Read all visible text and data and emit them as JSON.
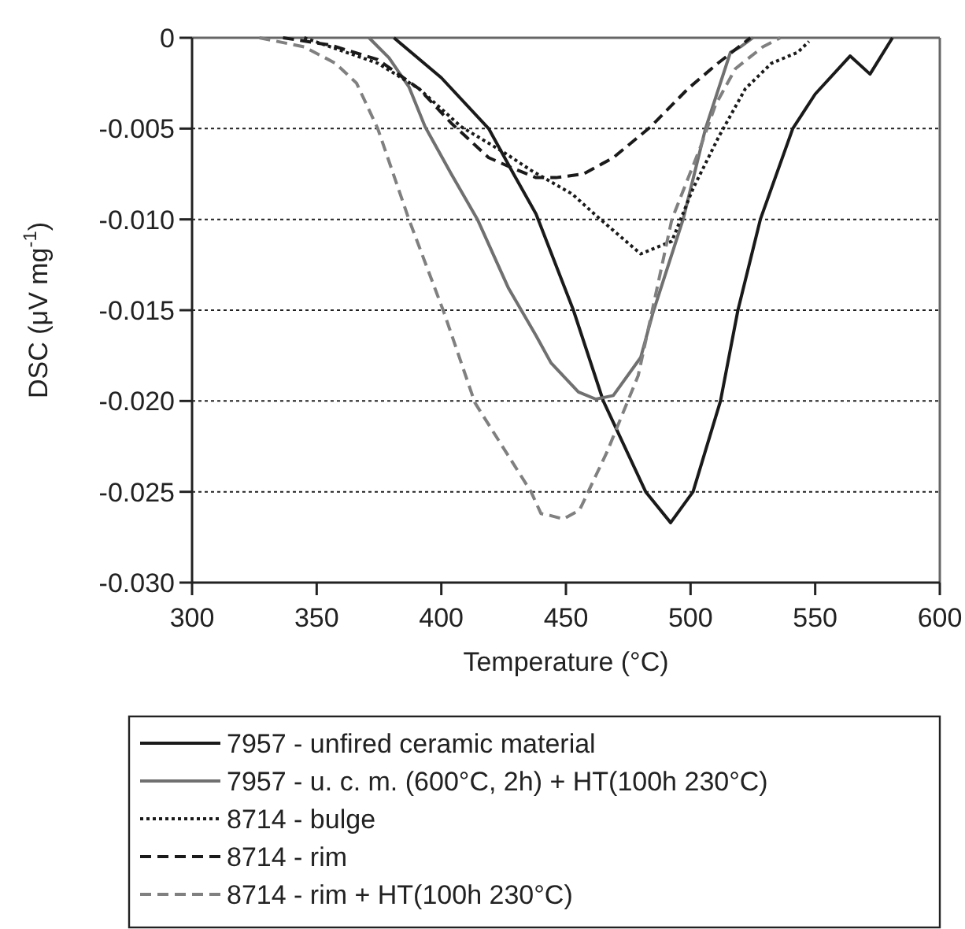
{
  "chart_data": {
    "type": "line",
    "xlabel": "Temperature (°C)",
    "ylabel": "DSC (μV mg$^{-1}$)",
    "xlim": [
      300,
      600
    ],
    "xticks": [
      300,
      350,
      400,
      450,
      500,
      550,
      600
    ],
    "ylim": [
      -0.03,
      0
    ],
    "yticks": [
      0,
      {
        "value": -0.005,
        "label": "-0.005"
      },
      {
        "value": -0.01,
        "label": "-0.010"
      },
      {
        "value": -0.015,
        "label": "-0.015"
      },
      {
        "value": -0.02,
        "label": "-0.020"
      },
      {
        "value": -0.025,
        "label": "-0.025"
      },
      {
        "value": -0.03,
        "label": "-0.030"
      }
    ],
    "grid": "y",
    "legend": "bottom",
    "marker": "none",
    "series": [
      {
        "name": "7957 - unfired ceramic material",
        "color": "#1a1a1a",
        "line_style": "solid",
        "x": [
          381,
          400,
          419,
          429,
          438,
          453,
          465,
          482,
          492,
          501,
          512,
          519,
          528,
          541,
          550,
          564,
          572,
          581
        ],
        "values": [
          0,
          -0.0022,
          -0.005,
          -0.0075,
          -0.0097,
          -0.015,
          -0.02,
          -0.025,
          -0.0267,
          -0.025,
          -0.02,
          -0.015,
          -0.01,
          -0.005,
          -0.0031,
          -0.001,
          -0.002,
          0
        ]
      },
      {
        "name": "7957 - u. c. m. (600°C, 2h) +  HT(100h 230°C)",
        "color": "#707070",
        "line_style": "solid",
        "x": [
          371,
          379,
          387,
          393.5,
          404,
          414.5,
          427,
          438,
          444,
          455,
          462,
          469,
          480,
          485,
          497,
          506,
          516,
          520,
          525
        ],
        "values": [
          0,
          -0.0011,
          -0.0027,
          -0.0049,
          -0.0075,
          -0.01,
          -0.0138,
          -0.0164,
          -0.0179,
          -0.0195,
          -0.0199,
          -0.0197,
          -0.0176,
          -0.0151,
          -0.01,
          -0.005,
          -0.0008,
          -0.0005,
          0
        ]
      },
      {
        "name": "8714 - bulge",
        "color": "#1a1a1a",
        "line_style": "dotted",
        "x": [
          345,
          374.5,
          391,
          408,
          425,
          436,
          452.5,
          463,
          480,
          492.5,
          501,
          511.5,
          522,
          532.5,
          543,
          547.5
        ],
        "values": [
          0,
          -0.0014,
          -0.0028,
          -0.0049,
          -0.0063,
          -0.0073,
          -0.0086,
          -0.0099,
          -0.0119,
          -0.0112,
          -0.0083,
          -0.0054,
          -0.0028,
          -0.0014,
          -0.0008,
          -0.0002
        ]
      },
      {
        "name": "8714 - rim",
        "color": "#1a1a1a",
        "line_style": "dashed",
        "x": [
          336.5,
          355.5,
          374.5,
          391,
          404,
          419,
          429,
          438,
          446,
          457,
          469,
          484,
          499,
          511,
          524
        ],
        "values": [
          0,
          -0.0004,
          -0.0012,
          -0.0028,
          -0.0047,
          -0.0066,
          -0.0072,
          -0.0077,
          -0.0077,
          -0.0075,
          -0.0066,
          -0.0049,
          -0.0028,
          -0.0014,
          0
        ]
      },
      {
        "name": "8714 - rim + HT(100h 230°C)",
        "color": "#808080",
        "line_style": "dashed",
        "x": [
          327,
          345,
          357.5,
          366,
          374.5,
          387,
          401,
          413.5,
          436,
          440,
          443.5,
          449,
          455.5,
          466.5,
          479,
          492.5,
          504,
          510,
          518,
          529,
          536
        ],
        "values": [
          0,
          -0.0005,
          -0.0014,
          -0.0025,
          -0.005,
          -0.01,
          -0.0151,
          -0.0201,
          -0.025,
          -0.0262,
          -0.0263,
          -0.0265,
          -0.026,
          -0.0228,
          -0.0186,
          -0.01,
          -0.006,
          -0.0037,
          -0.0017,
          -0.0005,
          0
        ]
      }
    ]
  }
}
